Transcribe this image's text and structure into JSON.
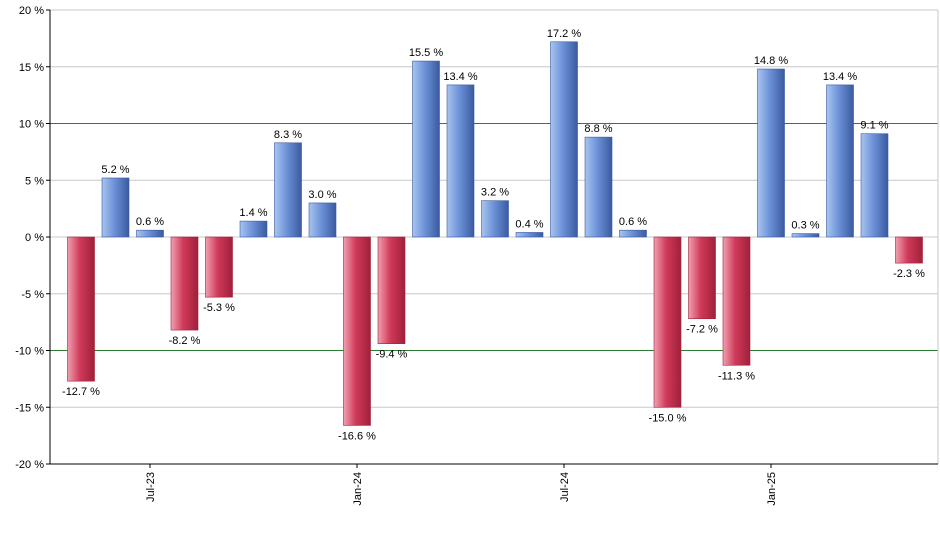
{
  "chart_data": {
    "type": "bar",
    "title": "",
    "xlabel": "",
    "ylabel": "",
    "ylim": [
      -20,
      20
    ],
    "yticks": [
      -20,
      -15,
      -10,
      -5,
      0,
      5,
      10,
      15,
      20
    ],
    "ytick_labels": [
      "-20 %",
      "-15 %",
      "-10 %",
      "-5 %",
      "0 %",
      "5 %",
      "10 %",
      "15 %",
      "20 %"
    ],
    "reference_lines": [
      10,
      -10
    ],
    "grid": true,
    "values": [
      -12.7,
      5.2,
      0.6,
      -8.2,
      -5.3,
      1.4,
      8.3,
      3.0,
      -16.6,
      -9.4,
      15.5,
      13.4,
      3.2,
      0.4,
      17.2,
      8.8,
      0.6,
      -15.0,
      -7.2,
      -11.3,
      14.8,
      0.3,
      13.4,
      9.1,
      -2.3
    ],
    "value_labels": [
      "-12.7 %",
      "5.2 %",
      "0.6 %",
      "-8.2 %",
      "-5.3 %",
      "1.4 %",
      "8.3 %",
      "3.0 %",
      "-16.6 %",
      "-9.4 %",
      "15.5 %",
      "13.4 %",
      "3.2 %",
      "0.4 %",
      "17.2 %",
      "8.8 %",
      "0.6 %",
      "-15.0 %",
      "-7.2 %",
      "-11.3 %",
      "14.8 %",
      "0.3 %",
      "13.4 %",
      "9.1 %",
      "-2.3 %"
    ],
    "xtick_labels": [
      {
        "index": 2,
        "label": "Jul-23"
      },
      {
        "index": 8,
        "label": "Jan-24"
      },
      {
        "index": 14,
        "label": "Jul-24"
      },
      {
        "index": 20,
        "label": "Jan-25"
      }
    ],
    "colors": {
      "positive_light": "#a8c4f0",
      "positive_mid": "#6d92d8",
      "positive_dark": "#3a5aa0",
      "negative_light": "#f0a0b0",
      "negative_mid": "#d03a5a",
      "negative_dark": "#a0203a",
      "grid": "#c8c8c8",
      "reference": "#2e7d32",
      "axis": "#000000"
    }
  }
}
